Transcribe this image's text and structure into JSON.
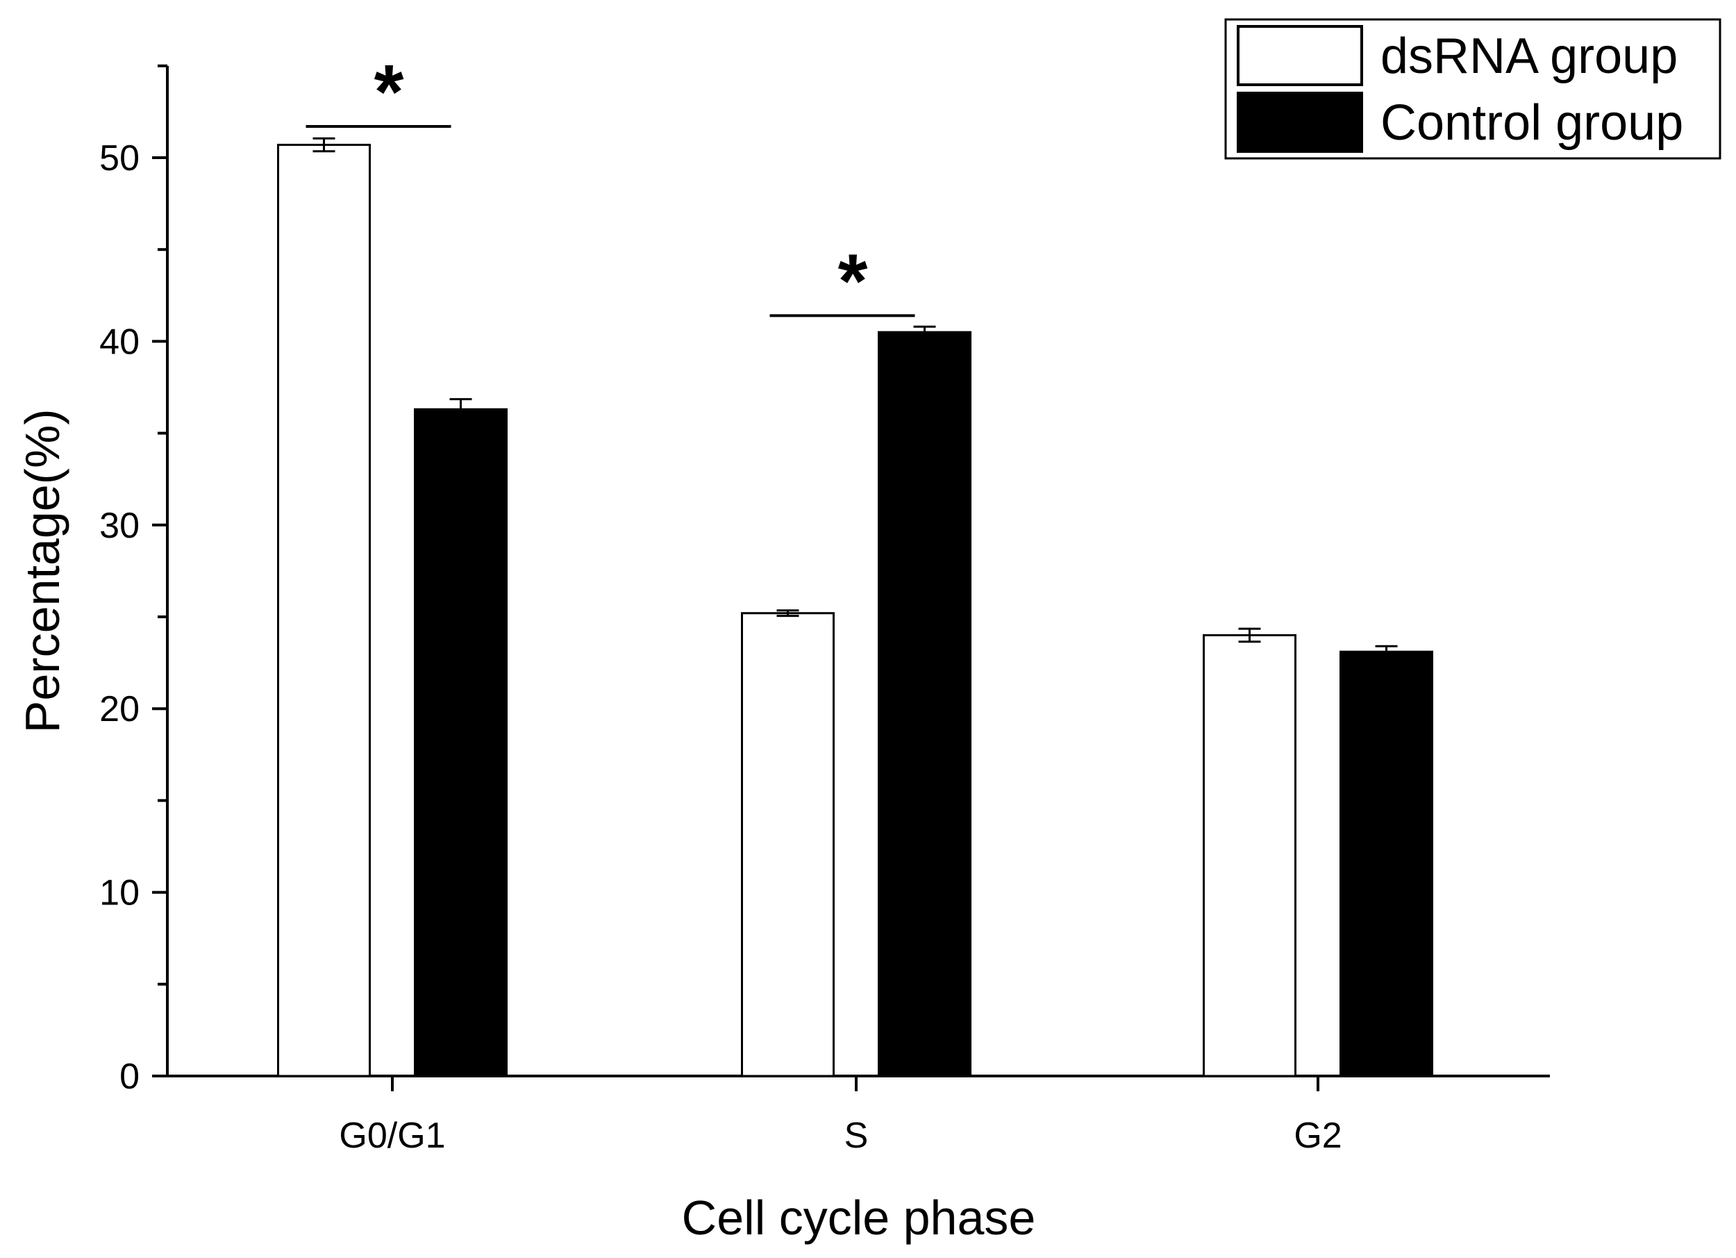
{
  "chart_data": {
    "type": "bar",
    "title": "",
    "xlabel": "Cell cycle phase",
    "ylabel": "Percentage(%)",
    "categories": [
      "G0/G1",
      "S",
      "G2"
    ],
    "ylim": [
      0,
      55
    ],
    "yticks": [
      0,
      10,
      20,
      30,
      40,
      50
    ],
    "grid": false,
    "legend_position": "top-right",
    "series": [
      {
        "name": "dsRNA group",
        "values": [
          50.7,
          25.2,
          24.0
        ],
        "errors": [
          0.35,
          0.15,
          0.35
        ],
        "fill": "#ffffff",
        "stroke": "#000000"
      },
      {
        "name": "Control group",
        "values": [
          36.3,
          40.5,
          23.1
        ],
        "errors": [
          0.55,
          0.3,
          0.3
        ],
        "fill": "#000000",
        "stroke": "#000000"
      }
    ],
    "significance": [
      {
        "category_index": 0,
        "symbol": "*",
        "y": 51.7
      },
      {
        "category_index": 1,
        "symbol": "*",
        "y": 41.4
      }
    ]
  }
}
